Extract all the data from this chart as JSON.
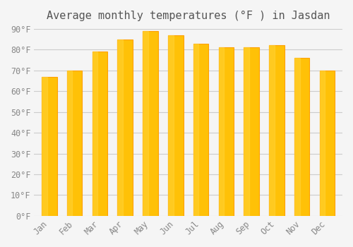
{
  "title": "Average monthly temperatures (°F ) in Jasdan",
  "months": [
    "Jan",
    "Feb",
    "Mar",
    "Apr",
    "May",
    "Jun",
    "Jul",
    "Aug",
    "Sep",
    "Oct",
    "Nov",
    "Dec"
  ],
  "values": [
    67,
    70,
    79,
    85,
    89,
    87,
    83,
    81,
    81,
    82,
    76,
    70
  ],
  "bar_color_face": "#FFC107",
  "bar_color_edge": "#FFA000",
  "background_color": "#F5F5F5",
  "grid_color": "#CCCCCC",
  "ylim": [
    0,
    90
  ],
  "yticks": [
    0,
    10,
    20,
    30,
    40,
    50,
    60,
    70,
    80,
    90
  ],
  "ytick_labels": [
    "0°F",
    "10°F",
    "20°F",
    "30°F",
    "40°F",
    "50°F",
    "60°F",
    "70°F",
    "80°F",
    "90°F"
  ],
  "title_fontsize": 11,
  "tick_fontsize": 8.5,
  "title_color": "#555555",
  "tick_color": "#888888",
  "font_family": "monospace"
}
